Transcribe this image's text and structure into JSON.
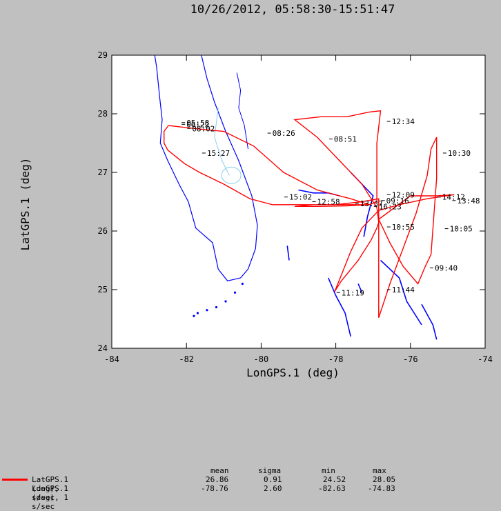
{
  "chart_data": {
    "type": "line",
    "title": "10/26/2012, 05:58:30-15:51:47",
    "xlabel": "LonGPS.1 (deg)",
    "ylabel": "LatGPS.1 (deg)",
    "xlim": [
      -84,
      -74
    ],
    "ylim": [
      24,
      29
    ],
    "x_ticks": [
      "-84",
      "-82",
      "-80",
      "-78",
      "-76",
      "-74"
    ],
    "y_ticks": [
      "24",
      "25",
      "26",
      "27",
      "28",
      "29"
    ],
    "grid": false,
    "map_background": "coastline (Florida, Bahamas)",
    "series": [
      {
        "name": "LatGPS.1 (deg), 1 s/sec",
        "color": "#ff0000",
        "lon": [
          -82.48,
          -82.6,
          -82.6,
          -82.5,
          -82.05,
          -81.65,
          -81.0,
          -80.3,
          -79.7,
          -78.9,
          -78.0,
          -77.3,
          -76.85,
          -76.85,
          -76.85,
          -76.85,
          -76.85,
          -76.85,
          -76.55,
          -76.2,
          -75.85,
          -75.55,
          -75.45,
          -75.3,
          -75.3,
          -75.45,
          -75.6,
          -75.8,
          -76.2,
          -76.55,
          -76.85,
          -76.0,
          -75.3,
          -74.83,
          -75.55,
          -76.3,
          -76.85,
          -77.3,
          -77.6,
          -77.85,
          -78.03,
          -77.85,
          -77.4,
          -77.05,
          -76.9,
          -76.85,
          -76.9,
          -77.3,
          -77.9,
          -78.5,
          -79.1,
          -78.4,
          -77.7,
          -77.1,
          -76.8,
          -76.9,
          -76.9,
          -77.1,
          -77.8,
          -78.6,
          -79.1,
          -78.5,
          -77.7,
          -77.1,
          -77.6,
          -78.5,
          -79.4,
          -80.2,
          -81.0,
          -81.8,
          -82.48
        ],
        "lat": [
          27.8,
          27.7,
          27.5,
          27.38,
          27.15,
          27.0,
          26.8,
          26.55,
          26.45,
          26.45,
          26.45,
          26.5,
          26.55,
          26.3,
          25.95,
          25.4,
          25.0,
          24.52,
          25.1,
          25.7,
          26.3,
          26.95,
          27.4,
          27.6,
          26.9,
          25.6,
          25.4,
          25.1,
          25.4,
          25.8,
          26.2,
          26.6,
          26.6,
          26.62,
          26.55,
          26.45,
          26.35,
          26.05,
          25.65,
          25.25,
          24.97,
          25.15,
          25.5,
          25.85,
          26.05,
          26.15,
          26.4,
          26.8,
          27.2,
          27.6,
          27.9,
          27.95,
          27.95,
          28.03,
          28.05,
          27.5,
          26.5,
          26.45,
          26.45,
          26.45,
          26.42,
          26.42,
          26.43,
          26.45,
          26.55,
          26.7,
          27.0,
          27.45,
          27.7,
          27.75,
          27.8
        ]
      },
      {
        "name": "LonGPS.1 (deg), 1 s/sec"
      }
    ],
    "annotations": [
      {
        "text": "08:02",
        "lon": -81.85,
        "lat": 27.75
      },
      {
        "text": "08:26",
        "lon": -79.7,
        "lat": 27.67
      },
      {
        "text": "08:51",
        "lon": -78.05,
        "lat": 27.57
      },
      {
        "text": "12:34",
        "lon": -76.5,
        "lat": 27.87
      },
      {
        "text": "15:27",
        "lon": -81.45,
        "lat": 27.33
      },
      {
        "text": "10:30",
        "lon": -75.0,
        "lat": 27.33
      },
      {
        "text": "12:09",
        "lon": -76.5,
        "lat": 26.62
      },
      {
        "text": "14:12",
        "lon": -75.15,
        "lat": 26.58
      },
      {
        "text": "15:02",
        "lon": -79.25,
        "lat": 26.58
      },
      {
        "text": "09:16",
        "lon": -76.65,
        "lat": 26.52
      },
      {
        "text": "13:48",
        "lon": -74.75,
        "lat": 26.52
      },
      {
        "text": "12:58",
        "lon": -78.5,
        "lat": 26.5
      },
      {
        "text": "13:37",
        "lon": -77.35,
        "lat": 26.47
      },
      {
        "text": "16:23",
        "lon": -76.85,
        "lat": 26.42
      },
      {
        "text": "10:55",
        "lon": -76.5,
        "lat": 26.07
      },
      {
        "text": "10:05",
        "lon": -74.95,
        "lat": 26.04
      },
      {
        "text": "09:40",
        "lon": -75.35,
        "lat": 25.37
      },
      {
        "text": "11:44",
        "lon": -76.5,
        "lat": 25.0
      },
      {
        "text": "11:19",
        "lon": -77.85,
        "lat": 24.95
      },
      {
        "text": "05:58",
        "lon": -82.0,
        "lat": 27.85
      },
      {
        "text": "06:22",
        "lon": -82.0,
        "lat": 27.82
      }
    ]
  },
  "stats": {
    "headers": [
      "mean",
      "sigma",
      "min",
      "max"
    ],
    "rows": [
      {
        "label": "LatGPS.1 (deg), 1 s/sec",
        "mean": "26.86",
        "sigma": "0.91",
        "min": "24.52",
        "max": "28.05"
      },
      {
        "label": "LonGPS.1 (deg), 1 s/sec",
        "mean": "-78.76",
        "sigma": "2.60",
        "min": "-82.63",
        "max": "-74.83"
      }
    ]
  },
  "colors": {
    "background": "#c0c0c0",
    "plot_bg": "#ffffff",
    "track": "#ff0000",
    "coast": "#0000ff",
    "rivers": "#87ceeb"
  }
}
